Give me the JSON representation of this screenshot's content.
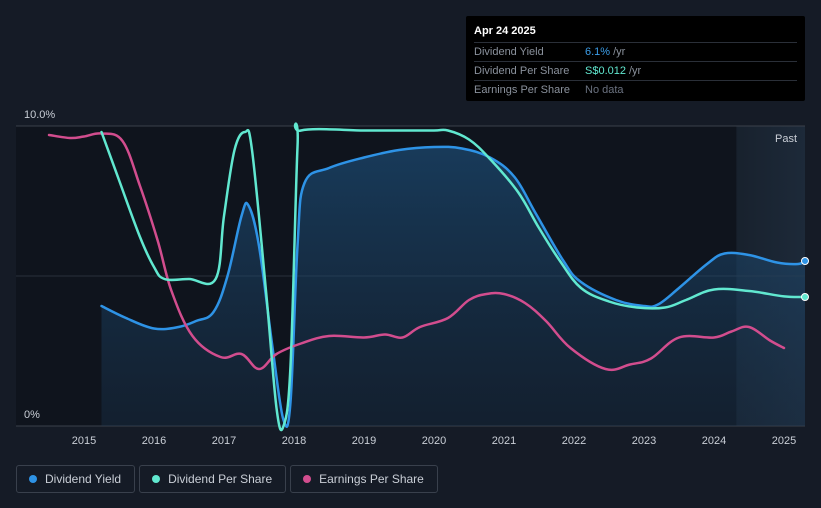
{
  "tooltip": {
    "date": "Apr 24 2025",
    "rows": [
      {
        "label": "Dividend Yield",
        "value": "6.1%",
        "unit": "/yr"
      },
      {
        "label": "Dividend Per Share",
        "value": "S$0.012",
        "unit": "/yr"
      },
      {
        "label": "Earnings Per Share",
        "value": "No data",
        "unit": ""
      }
    ]
  },
  "chart_data": {
    "type": "line",
    "y_tick_labels": [
      "10.0%",
      "0%"
    ],
    "ylim": [
      0,
      10
    ],
    "xlim": [
      2014.5,
      2025.3
    ],
    "x_ticks": [
      2015,
      2016,
      2017,
      2018,
      2019,
      2020,
      2021,
      2022,
      2023,
      2024,
      2025
    ],
    "past_label": "Past",
    "past_start": 2024.32,
    "grid": true,
    "legend_position": "bottom-left",
    "series": [
      {
        "name": "Dividend Yield",
        "color": "#2e93e6",
        "area": true,
        "points": [
          [
            2015.25,
            4.0
          ],
          [
            2015.6,
            3.6
          ],
          [
            2016.0,
            3.25
          ],
          [
            2016.35,
            3.3
          ],
          [
            2016.6,
            3.5
          ],
          [
            2016.85,
            3.8
          ],
          [
            2017.05,
            5.0
          ],
          [
            2017.25,
            7.0
          ],
          [
            2017.35,
            7.35
          ],
          [
            2017.5,
            6.0
          ],
          [
            2017.7,
            2.5
          ],
          [
            2017.85,
            0.2
          ],
          [
            2017.95,
            0.8
          ],
          [
            2018.05,
            6.0
          ],
          [
            2018.15,
            8.1
          ],
          [
            2018.5,
            8.6
          ],
          [
            2019.0,
            8.95
          ],
          [
            2019.5,
            9.2
          ],
          [
            2020.0,
            9.3
          ],
          [
            2020.4,
            9.25
          ],
          [
            2020.8,
            8.95
          ],
          [
            2021.15,
            8.3
          ],
          [
            2021.45,
            7.1
          ],
          [
            2021.85,
            5.5
          ],
          [
            2022.1,
            4.8
          ],
          [
            2022.6,
            4.2
          ],
          [
            2023.0,
            4.0
          ],
          [
            2023.2,
            4.05
          ],
          [
            2023.5,
            4.6
          ],
          [
            2023.9,
            5.4
          ],
          [
            2024.15,
            5.75
          ],
          [
            2024.5,
            5.7
          ],
          [
            2024.9,
            5.45
          ],
          [
            2025.2,
            5.4
          ],
          [
            2025.3,
            5.5
          ]
        ]
      },
      {
        "name": "Dividend Per Share",
        "color": "#61e8d0",
        "points": [
          [
            2015.25,
            9.8
          ],
          [
            2015.5,
            8.2
          ],
          [
            2015.8,
            6.3
          ],
          [
            2016.0,
            5.3
          ],
          [
            2016.15,
            4.9
          ],
          [
            2016.5,
            4.9
          ],
          [
            2016.88,
            4.9
          ],
          [
            2017.0,
            7.0
          ],
          [
            2017.15,
            9.2
          ],
          [
            2017.3,
            9.8
          ],
          [
            2017.4,
            9.2
          ],
          [
            2017.6,
            4.5
          ],
          [
            2017.75,
            0.6
          ],
          [
            2017.85,
            0.0
          ],
          [
            2017.95,
            2.0
          ],
          [
            2018.05,
            9.3
          ],
          [
            2018.1,
            9.85
          ],
          [
            2019.0,
            9.85
          ],
          [
            2019.5,
            9.85
          ],
          [
            2020.0,
            9.85
          ],
          [
            2020.2,
            9.85
          ],
          [
            2020.5,
            9.55
          ],
          [
            2020.8,
            8.9
          ],
          [
            2021.2,
            7.8
          ],
          [
            2021.5,
            6.6
          ],
          [
            2021.8,
            5.5
          ],
          [
            2022.1,
            4.6
          ],
          [
            2022.5,
            4.15
          ],
          [
            2022.9,
            3.95
          ],
          [
            2023.3,
            3.95
          ],
          [
            2023.6,
            4.2
          ],
          [
            2024.0,
            4.55
          ],
          [
            2024.5,
            4.5
          ],
          [
            2025.0,
            4.32
          ],
          [
            2025.3,
            4.3
          ]
        ]
      },
      {
        "name": "Earnings Per Share",
        "color": "#d24d8e",
        "points": [
          [
            2014.5,
            9.7
          ],
          [
            2014.8,
            9.6
          ],
          [
            2015.0,
            9.65
          ],
          [
            2015.25,
            9.75
          ],
          [
            2015.55,
            9.5
          ],
          [
            2015.8,
            8.0
          ],
          [
            2016.05,
            6.2
          ],
          [
            2016.25,
            4.5
          ],
          [
            2016.55,
            3.0
          ],
          [
            2016.95,
            2.3
          ],
          [
            2017.25,
            2.4
          ],
          [
            2017.5,
            1.9
          ],
          [
            2017.75,
            2.4
          ],
          [
            2018.1,
            2.75
          ],
          [
            2018.5,
            3.0
          ],
          [
            2019.0,
            2.95
          ],
          [
            2019.3,
            3.05
          ],
          [
            2019.55,
            2.95
          ],
          [
            2019.8,
            3.3
          ],
          [
            2020.2,
            3.6
          ],
          [
            2020.5,
            4.2
          ],
          [
            2020.75,
            4.4
          ],
          [
            2021.0,
            4.4
          ],
          [
            2021.3,
            4.1
          ],
          [
            2021.6,
            3.5
          ],
          [
            2021.95,
            2.6
          ],
          [
            2022.45,
            1.9
          ],
          [
            2022.8,
            2.05
          ],
          [
            2023.1,
            2.25
          ],
          [
            2023.5,
            2.95
          ],
          [
            2024.0,
            2.95
          ],
          [
            2024.25,
            3.15
          ],
          [
            2024.5,
            3.3
          ],
          [
            2024.8,
            2.85
          ],
          [
            2025.0,
            2.6
          ]
        ]
      }
    ]
  },
  "legend": [
    {
      "label": "Dividend Yield",
      "color": "#2e93e6"
    },
    {
      "label": "Dividend Per Share",
      "color": "#61e8d0"
    },
    {
      "label": "Earnings Per Share",
      "color": "#d24d8e"
    }
  ]
}
